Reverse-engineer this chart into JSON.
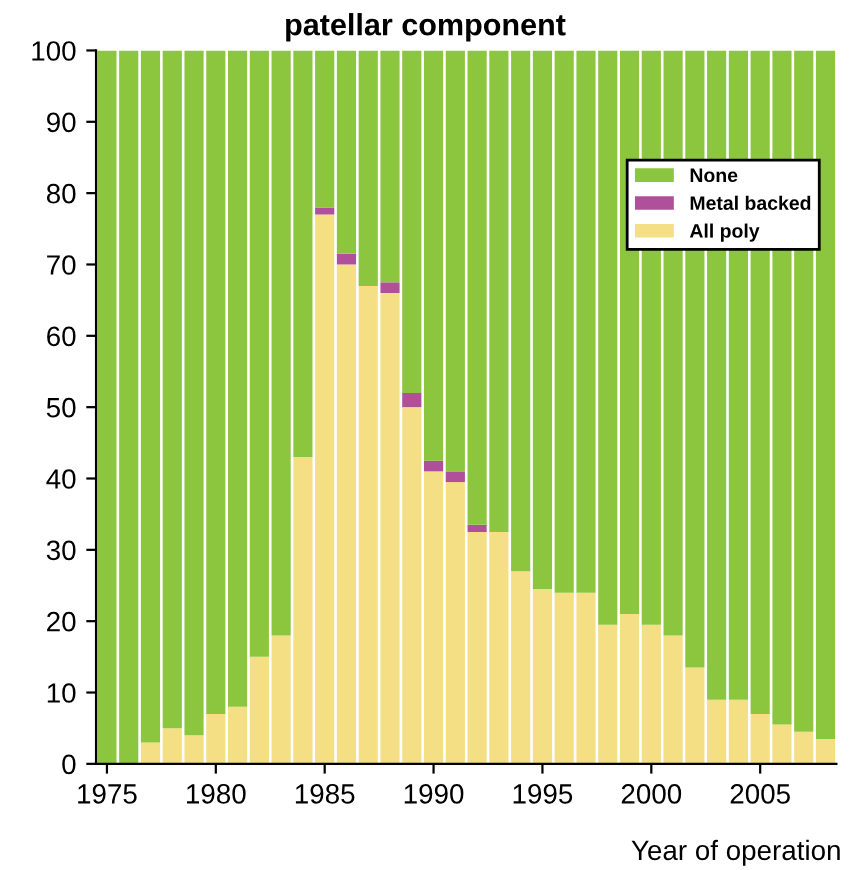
{
  "chart_data": {
    "type": "bar",
    "title": "patellar component",
    "xlabel": "Year of operation",
    "stacked": true,
    "categories": [
      "1975",
      null,
      null,
      null,
      null,
      "1980",
      null,
      null,
      null,
      null,
      "1985",
      null,
      null,
      null,
      null,
      "1990",
      null,
      null,
      null,
      null,
      "1995",
      null,
      null,
      null,
      null,
      "2000",
      null,
      null,
      null,
      null,
      "2005",
      null,
      null,
      null
    ],
    "series": [
      {
        "name": "All poly",
        "color": "#f5df85",
        "values": [
          0,
          0,
          3,
          5,
          4,
          7,
          8,
          15,
          18,
          43,
          77,
          70,
          67,
          66,
          50,
          41,
          39.5,
          32.5,
          32.5,
          27,
          24.5,
          24,
          24,
          19.5,
          21,
          19.5,
          18,
          13.5,
          9,
          9,
          7,
          5.5,
          4.5,
          3.5
        ]
      },
      {
        "name": "Metal backed",
        "color": "#b0509a",
        "values": [
          0,
          0,
          0,
          0,
          0,
          0,
          0,
          0,
          0,
          0,
          1,
          1.5,
          0,
          1.5,
          2,
          1.5,
          1.5,
          1,
          0,
          0,
          0,
          0,
          0,
          0,
          0,
          0,
          0,
          0,
          0,
          0,
          0,
          0,
          0,
          0
        ]
      },
      {
        "name": "None",
        "color": "#8cc63f",
        "values": [
          100,
          100,
          97,
          95,
          96,
          93,
          92,
          85,
          82,
          57,
          22,
          28.5,
          33,
          32.5,
          48,
          57.5,
          59,
          66.5,
          67.5,
          73,
          75.5,
          76,
          76,
          80.5,
          79,
          80.5,
          82,
          86.5,
          91,
          91,
          93,
          94.5,
          95.5,
          96.5
        ]
      }
    ],
    "ylim": [
      0,
      100
    ],
    "yticks": [
      0,
      10,
      20,
      30,
      40,
      50,
      60,
      70,
      80,
      90,
      100
    ],
    "legend": "right",
    "grid": false
  }
}
